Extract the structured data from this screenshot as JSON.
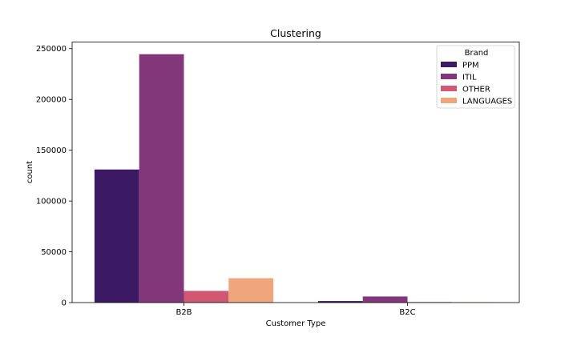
{
  "chart_data": {
    "type": "bar",
    "title": "Clustering",
    "xlabel": "Customer Type",
    "ylabel": "count",
    "categories": [
      "B2B",
      "B2C"
    ],
    "series": [
      {
        "name": "PPM",
        "color": "#3b1a63",
        "values": [
          131000,
          1500
        ]
      },
      {
        "name": "ITIL",
        "color": "#82377b",
        "values": [
          244500,
          6000
        ]
      },
      {
        "name": "OTHER",
        "color": "#d15872",
        "values": [
          11500,
          500
        ]
      },
      {
        "name": "LANGUAGES",
        "color": "#f0a67d",
        "values": [
          24000,
          300
        ]
      }
    ],
    "ylim": [
      0,
      256500
    ],
    "yticks": [
      0,
      50000,
      100000,
      150000,
      200000,
      250000
    ],
    "legend": {
      "title": "Brand",
      "position": "top-right"
    },
    "grid": false
  }
}
